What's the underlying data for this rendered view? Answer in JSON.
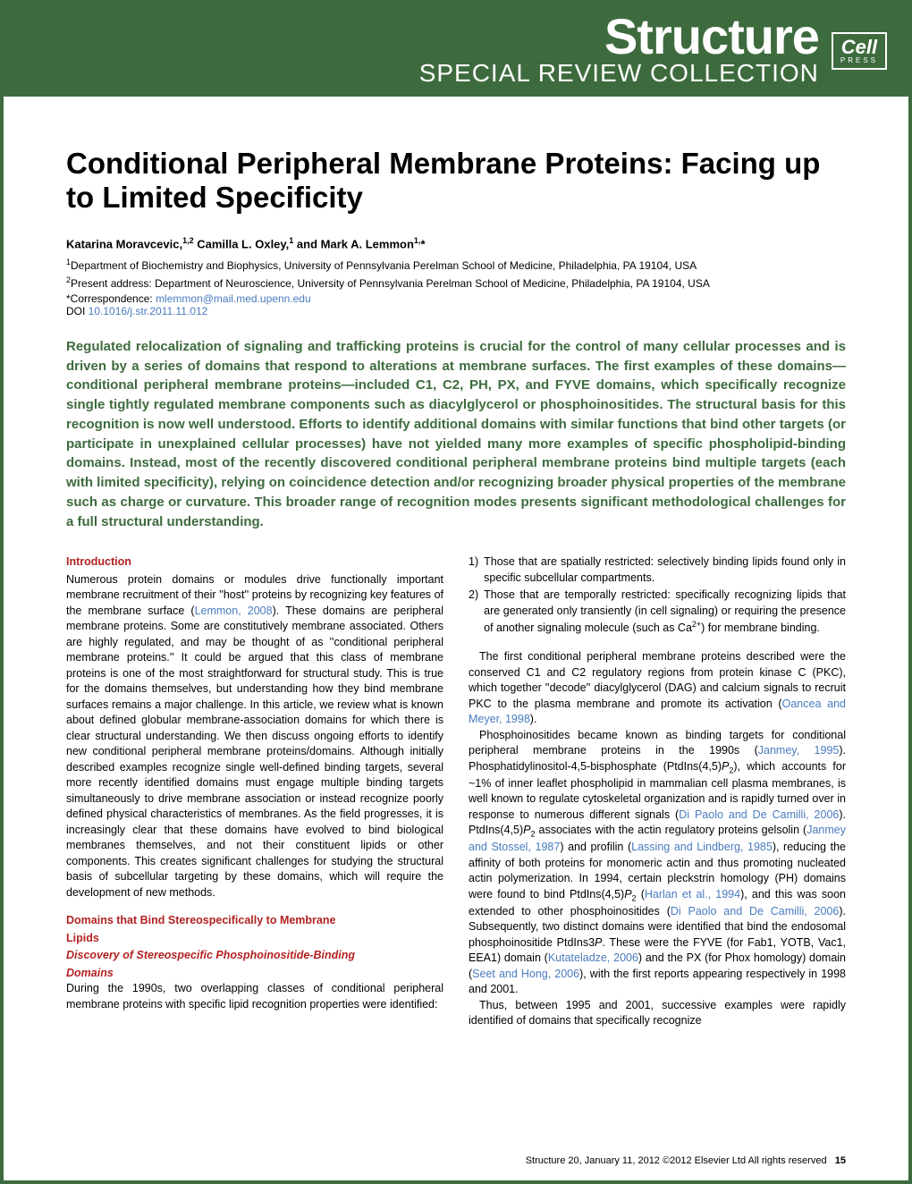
{
  "banner": {
    "brand": "Structure",
    "subbrand": "SPECIAL REVIEW COLLECTION",
    "logo_main": "Cell",
    "logo_sub": "PRESS",
    "bg_color": "#3e6b3e",
    "fg_color": "#ffffff"
  },
  "title": "Conditional Peripheral Membrane Proteins: Facing up to Limited Specificity",
  "authors_html": "Katarina Moravcevic,<sup>1,2</sup> Camilla L. Oxley,<sup>1</sup> and Mark A. Lemmon<sup>1,</sup>*",
  "affil1": "<sup>1</sup>Department of Biochemistry and Biophysics, University of Pennsylvania Perelman School of Medicine, Philadelphia, PA 19104, USA",
  "affil2": "<sup>2</sup>Present address: Department of Neuroscience, University of Pennsylvania Perelman School of Medicine, Philadelphia, PA 19104, USA",
  "correspondence_label": "*Correspondence: ",
  "correspondence_email": "mlemmon@mail.med.upenn.edu",
  "doi_label": "DOI ",
  "doi": "10.1016/j.str.2011.11.012",
  "abstract": "Regulated relocalization of signaling and trafficking proteins is crucial for the control of many cellular processes and is driven by a series of domains that respond to alterations at membrane surfaces. The first examples of these domains—conditional peripheral membrane proteins—included C1, C2, PH, PX, and FYVE domains, which specifically recognize single tightly regulated membrane components such as diacylglycerol or phosphoinositides. The structural basis for this recognition is now well understood. Efforts to identify additional domains with similar functions that bind other targets (or participate in unexplained cellular processes) have not yielded many more examples of specific phospholipid-binding domains. Instead, most of the recently discovered conditional peripheral membrane proteins bind multiple targets (each with limited specificity), relying on coincidence detection and/or recognizing broader physical properties of the membrane such as charge or curvature. This broader range of recognition modes presents significant methodological challenges for a full structural understanding.",
  "left": {
    "intro_head": "Introduction",
    "intro_body": "Numerous protein domains or modules drive functionally important membrane recruitment of their ''host'' proteins by recognizing key features of the membrane surface (<span class=\"link\">Lemmon, 2008</span>). These domains are peripheral membrane proteins. Some are constitutively membrane associated. Others are highly regulated, and may be thought of as ''conditional peripheral membrane proteins.'' It could be argued that this class of membrane proteins is one of the most straightforward for structural study. This is true for the domains themselves, but understanding how they bind membrane surfaces remains a major challenge. In this article, we review what is known about defined globular membrane-association domains for which there is clear structural understanding. We then discuss ongoing efforts to identify new conditional peripheral membrane proteins/domains. Although initially described examples recognize single well-defined binding targets, several more recently identified domains must engage multiple binding targets simultaneously to drive membrane association or instead recognize poorly defined physical characteristics of membranes. As the field progresses, it is increasingly clear that these domains have evolved to bind biological membranes themselves, and not their constituent lipids or other components. This creates significant challenges for studying the structural basis of subcellular targeting by these domains, which will require the development of new methods.",
    "sec2_l1": "Domains that Bind Stereospecifically to Membrane",
    "sec2_l2": "Lipids",
    "sub_l1": "Discovery of Stereospecific Phosphoinositide-Binding",
    "sub_l2": "Domains",
    "sec2_body": "During the 1990s, two overlapping classes of conditional peripheral membrane proteins with specific lipid recognition properties were identified:"
  },
  "right": {
    "item1": "Those that are spatially restricted: selectively binding lipids found only in specific subcellular compartments.",
    "item2": "Those that are temporally restricted: specifically recognizing lipids that are generated only transiently (in cell signaling) or requiring the presence of another signaling molecule (such as Ca<sup>2+</sup>) for membrane binding.",
    "p1": "The first conditional peripheral membrane proteins described were the conserved C1 and C2 regulatory regions from protein kinase C (PKC), which together ''decode'' diacylglycerol (DAG) and calcium signals to recruit PKC to the plasma membrane and promote its activation (<span class=\"link\">Oancea and Meyer, 1998</span>).",
    "p2": "Phosphoinositides became known as binding targets for conditional peripheral membrane proteins in the 1990s (<span class=\"link\">Janmey, 1995</span>). Phosphatidylinositol-4,5-bisphosphate (PtdIns(4,5)<i>P</i><sub>2</sub>), which accounts for ~1% of inner leaflet phospholipid in mammalian cell plasma membranes, is well known to regulate cytoskeletal organization and is rapidly turned over in response to numerous different signals (<span class=\"link\">Di Paolo and De Camilli, 2006</span>). PtdIns(4,5)<i>P</i><sub>2</sub> associates with the actin regulatory proteins gelsolin (<span class=\"link\">Janmey and Stossel, 1987</span>) and profilin (<span class=\"link\">Lassing and Lindberg, 1985</span>), reducing the affinity of both proteins for monomeric actin and thus promoting nucleated actin polymerization. In 1994, certain pleckstrin homology (PH) domains were found to bind PtdIns(4,5)<i>P</i><sub>2</sub> (<span class=\"link\">Harlan et al., 1994</span>), and this was soon extended to other phosphoinositides (<span class=\"link\">Di Paolo and De Camilli, 2006</span>). Subsequently, two distinct domains were identified that bind the endosomal phosphoinositide PtdIns3<i>P</i>. These were the FYVE (for Fab1, YOTB, Vac1, EEA1) domain (<span class=\"link\">Kutateladze, 2006</span>) and the PX (for Phox homology) domain (<span class=\"link\">Seet and Hong, 2006</span>), with the first reports appearing respectively in 1998 and 2001.",
    "p3": "Thus, between 1995 and 2001, successive examples were rapidly identified of domains that specifically recognize"
  },
  "footer": {
    "cite": "Structure 20, January 11, 2012 ©2012 Elsevier Ltd All rights reserved",
    "page": "15"
  },
  "colors": {
    "brand_green": "#3e6b3e",
    "heading_red": "#b22222",
    "link_blue": "#4a7bbf",
    "text": "#000000",
    "bg": "#ffffff"
  },
  "typography": {
    "title_fontsize": 33,
    "abstract_fontsize": 15,
    "body_fontsize": 12.5,
    "brand_fontsize": 56,
    "subbrand_fontsize": 28
  }
}
